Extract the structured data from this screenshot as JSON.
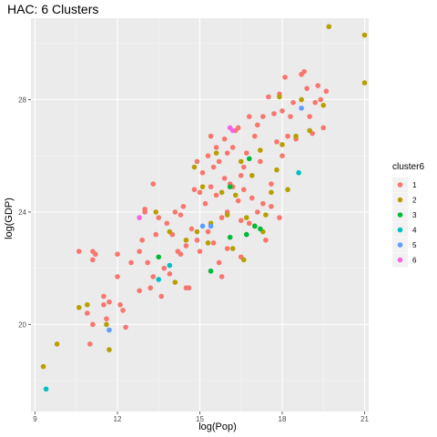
{
  "chart_data": {
    "type": "scatter",
    "title": "HAC: 6 Clusters",
    "xlabel": "log(Pop)",
    "ylabel": "log(GDP)",
    "xlim": [
      8.85,
      21.15
    ],
    "ylim": [
      16.9,
      30.9
    ],
    "xticks": [
      9,
      12,
      15,
      18,
      21
    ],
    "yticks": [
      20,
      24,
      28
    ],
    "grid": true,
    "legend": {
      "title": "cluster6",
      "position": "right",
      "entries": [
        {
          "label": "1",
          "color": "#F8766D"
        },
        {
          "label": "2",
          "color": "#B79F00"
        },
        {
          "label": "3",
          "color": "#00BA38"
        },
        {
          "label": "4",
          "color": "#00BFC4"
        },
        {
          "label": "5",
          "color": "#619CFF"
        },
        {
          "label": "6",
          "color": "#F564E3"
        }
      ]
    },
    "series": [
      {
        "name": "1",
        "color": "#F8766D",
        "points": [
          [
            10.6,
            22.6
          ],
          [
            11.1,
            22.6
          ],
          [
            11.1,
            22.3
          ],
          [
            11.2,
            22.5
          ],
          [
            10.9,
            20.4
          ],
          [
            11.1,
            20.0
          ],
          [
            11.0,
            19.3
          ],
          [
            11.5,
            21.0
          ],
          [
            11.5,
            20.7
          ],
          [
            11.7,
            20.8
          ],
          [
            11.6,
            20.2
          ],
          [
            12.0,
            21.7
          ],
          [
            12.0,
            22.5
          ],
          [
            12.1,
            20.7
          ],
          [
            12.2,
            20.5
          ],
          [
            12.3,
            19.9
          ],
          [
            12.5,
            22.2
          ],
          [
            12.8,
            21.2
          ],
          [
            12.9,
            23.0
          ],
          [
            13.0,
            24.0
          ],
          [
            13.1,
            22.2
          ],
          [
            13.2,
            21.3
          ],
          [
            13.3,
            21.7
          ],
          [
            13.3,
            25.0
          ],
          [
            13.4,
            23.2
          ],
          [
            13.5,
            23.8
          ],
          [
            13.6,
            21.0
          ],
          [
            13.7,
            22.0
          ],
          [
            13.8,
            23.6
          ],
          [
            13.9,
            21.8
          ],
          [
            14.0,
            23.2
          ],
          [
            14.1,
            24.0
          ],
          [
            14.2,
            22.6
          ],
          [
            14.3,
            23.9
          ],
          [
            14.4,
            24.2
          ],
          [
            14.5,
            22.8
          ],
          [
            14.5,
            21.3
          ],
          [
            14.6,
            21.3
          ],
          [
            14.7,
            23.4
          ],
          [
            14.8,
            24.8
          ],
          [
            14.9,
            23.0
          ],
          [
            15.0,
            22.6
          ],
          [
            15.0,
            24.7
          ],
          [
            15.1,
            25.4
          ],
          [
            15.2,
            24.3
          ],
          [
            15.3,
            26.0
          ],
          [
            15.3,
            23.3
          ],
          [
            15.4,
            26.7
          ],
          [
            15.5,
            25.6
          ],
          [
            15.6,
            24.6
          ],
          [
            15.6,
            26.3
          ],
          [
            15.7,
            22.2
          ],
          [
            15.8,
            21.7
          ],
          [
            15.8,
            23.8
          ],
          [
            15.9,
            25.2
          ],
          [
            15.9,
            26.6
          ],
          [
            16.0,
            22.7
          ],
          [
            16.0,
            24.0
          ],
          [
            16.1,
            25.0
          ],
          [
            16.2,
            26.3
          ],
          [
            16.3,
            26.9
          ],
          [
            16.4,
            27.0
          ],
          [
            16.4,
            24.4
          ],
          [
            16.5,
            23.7
          ],
          [
            16.5,
            22.4
          ],
          [
            16.6,
            25.6
          ],
          [
            16.7,
            26.1
          ],
          [
            16.8,
            27.4
          ],
          [
            16.9,
            24.5
          ],
          [
            17.0,
            26.7
          ],
          [
            17.1,
            27.1
          ],
          [
            17.2,
            25.8
          ],
          [
            17.3,
            27.4
          ],
          [
            17.3,
            24.3
          ],
          [
            17.4,
            23.0
          ],
          [
            17.5,
            28.1
          ],
          [
            17.6,
            25.0
          ],
          [
            17.7,
            27.5
          ],
          [
            17.8,
            26.5
          ],
          [
            17.9,
            28.2
          ],
          [
            18.0,
            27.6
          ],
          [
            18.0,
            26.0
          ],
          [
            18.1,
            28.8
          ],
          [
            18.2,
            26.7
          ],
          [
            18.3,
            27.4
          ],
          [
            18.4,
            27.9
          ],
          [
            18.5,
            26.6
          ],
          [
            18.7,
            28.9
          ],
          [
            18.8,
            29.0
          ],
          [
            18.9,
            28.4
          ],
          [
            19.0,
            27.4
          ],
          [
            19.1,
            26.8
          ],
          [
            19.2,
            27.9
          ],
          [
            19.3,
            28.5
          ],
          [
            19.4,
            28.0
          ],
          [
            19.5,
            27.0
          ],
          [
            19.6,
            28.3
          ],
          [
            16.2,
            24.9
          ],
          [
            16.6,
            24.8
          ],
          [
            15.7,
            25.8
          ],
          [
            17.1,
            24.0
          ],
          [
            16.8,
            23.6
          ],
          [
            14.3,
            22.5
          ],
          [
            13.0,
            24.1
          ],
          [
            12.8,
            22.6
          ],
          [
            15.4,
            24.9
          ],
          [
            16.0,
            26.1
          ],
          [
            17.6,
            24.2
          ],
          [
            17.9,
            23.8
          ],
          [
            16.5,
            25.3
          ],
          [
            15.5,
            22.9
          ],
          [
            14.9,
            25.8
          ]
        ]
      },
      {
        "name": "2",
        "color": "#B79F00",
        "points": [
          [
            9.3,
            18.5
          ],
          [
            9.8,
            19.3
          ],
          [
            10.6,
            20.6
          ],
          [
            10.9,
            20.7
          ],
          [
            11.6,
            20.0
          ],
          [
            11.7,
            19.1
          ],
          [
            13.4,
            24.0
          ],
          [
            13.9,
            23.3
          ],
          [
            14.1,
            21.5
          ],
          [
            14.5,
            23.0
          ],
          [
            14.8,
            25.6
          ],
          [
            14.9,
            23.3
          ],
          [
            15.1,
            24.9
          ],
          [
            15.4,
            23.6
          ],
          [
            15.6,
            26.1
          ],
          [
            15.8,
            24.7
          ],
          [
            16.0,
            23.9
          ],
          [
            16.3,
            24.6
          ],
          [
            16.5,
            25.8
          ],
          [
            16.7,
            23.8
          ],
          [
            16.9,
            25.3
          ],
          [
            17.0,
            23.5
          ],
          [
            17.2,
            26.2
          ],
          [
            17.4,
            23.9
          ],
          [
            17.6,
            24.7
          ],
          [
            17.8,
            25.5
          ],
          [
            18.0,
            26.4
          ],
          [
            18.2,
            24.8
          ],
          [
            18.5,
            26.7
          ],
          [
            18.7,
            28.0
          ],
          [
            19.0,
            26.9
          ],
          [
            19.5,
            27.8
          ],
          [
            19.7,
            30.6
          ],
          [
            21.0,
            30.3
          ],
          [
            21.0,
            28.6
          ],
          [
            17.9,
            28.1
          ],
          [
            16.2,
            22.7
          ],
          [
            16.6,
            22.3
          ],
          [
            17.3,
            23.3
          ],
          [
            15.3,
            22.9
          ]
        ]
      },
      {
        "name": "3",
        "color": "#00BA38",
        "points": [
          [
            13.5,
            22.4
          ],
          [
            15.4,
            21.9
          ],
          [
            16.1,
            24.9
          ],
          [
            16.8,
            25.9
          ],
          [
            16.1,
            23.1
          ],
          [
            17.0,
            23.5
          ],
          [
            17.2,
            23.4
          ],
          [
            16.7,
            23.2
          ]
        ]
      },
      {
        "name": "4",
        "color": "#00BFC4",
        "points": [
          [
            9.4,
            17.7
          ],
          [
            13.5,
            21.6
          ],
          [
            13.9,
            22.1
          ],
          [
            18.6,
            25.4
          ]
        ]
      },
      {
        "name": "5",
        "color": "#619CFF",
        "points": [
          [
            11.7,
            19.8
          ],
          [
            15.1,
            23.5
          ],
          [
            15.4,
            23.5
          ],
          [
            18.7,
            27.7
          ]
        ]
      },
      {
        "name": "6",
        "color": "#F564E3",
        "points": [
          [
            12.8,
            23.8
          ],
          [
            16.1,
            27.0
          ],
          [
            16.2,
            26.9
          ]
        ]
      }
    ]
  }
}
